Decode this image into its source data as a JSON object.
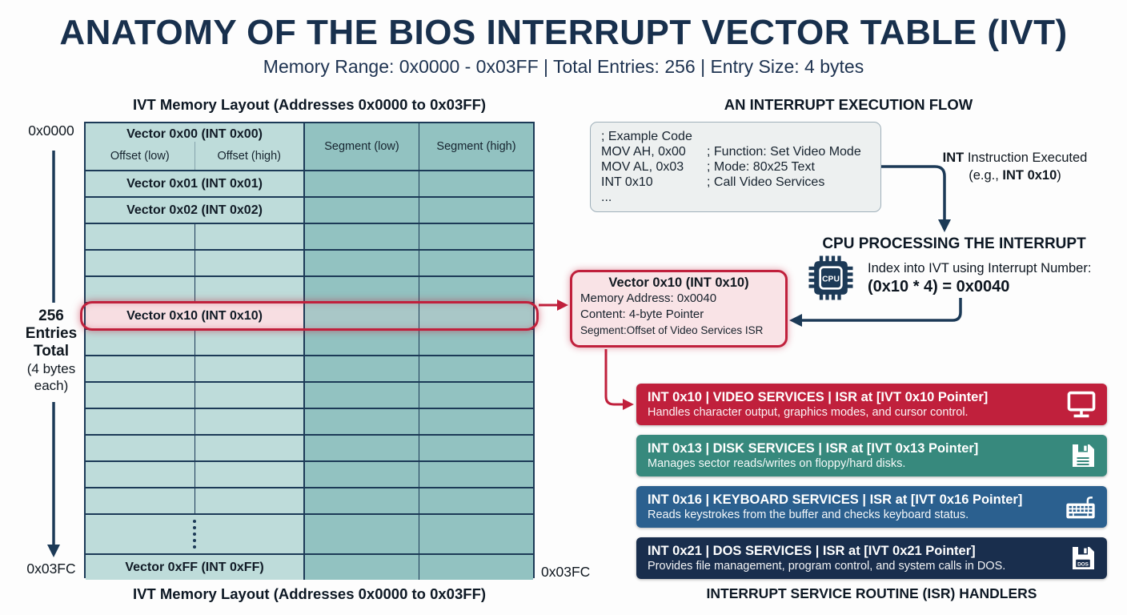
{
  "colors": {
    "navy": "#1c3a57",
    "title_navy": "#18304d",
    "crimson": "#c0203c",
    "cell_light": "#bedcda",
    "cell_dark": "#92c2c1",
    "highlight_pink": "#f7dee2",
    "callout_bg": "#f9e3e6",
    "code_bg": "#edf0f0",
    "bar_red": "#c0203c",
    "bar_teal": "#37897d",
    "bar_blue": "#2b608f",
    "bar_navy": "#192e4d"
  },
  "header": {
    "title": "ANATOMY OF THE BIOS INTERRUPT VECTOR TABLE (IVT)",
    "subtitle": "Memory Range: 0x0000 - 0x03FF | Total Entries: 256 | Entry Size: 4 bytes"
  },
  "ivt": {
    "heading": "IVT Memory Layout (Addresses 0x0000 to 0x03FF)",
    "caption": "IVT Memory Layout (Addresses 0x0000 to 0x03FF)",
    "addr_top": "0x0000",
    "addr_bottom_left": "0x03FC",
    "addr_bottom_right": "0x03FC",
    "side_note": [
      "256",
      "Entries",
      "Total",
      "(4 bytes",
      "each)"
    ],
    "header_row": {
      "title": "Vector 0x00 (INT 0x00)",
      "offset_low": "Offset (low)",
      "offset_high": "Offset (high)",
      "segment_low": "Segment (low)",
      "segment_high": "Segment (high)"
    },
    "rows": [
      {
        "type": "labeled",
        "label": "Vector 0x01 (INT 0x01)"
      },
      {
        "type": "labeled",
        "label": "Vector 0x02 (INT 0x02)"
      },
      {
        "type": "empty"
      },
      {
        "type": "empty"
      },
      {
        "type": "empty"
      },
      {
        "type": "highlight",
        "label": "Vector 0x10 (INT 0x10)"
      },
      {
        "type": "empty"
      },
      {
        "type": "empty"
      },
      {
        "type": "empty"
      },
      {
        "type": "empty"
      },
      {
        "type": "empty"
      },
      {
        "type": "empty"
      },
      {
        "type": "empty"
      },
      {
        "type": "ellipsis"
      },
      {
        "type": "labeled",
        "label": "Vector 0xFF (INT 0xFF)"
      }
    ]
  },
  "flow": {
    "heading": "AN INTERRUPT EXECUTION FLOW",
    "code_lines": [
      {
        "code": "; Example Code",
        "comment": ""
      },
      {
        "code": "MOV AH, 0x00",
        "comment": "; Function: Set Video Mode"
      },
      {
        "code": "MOV AL, 0x03",
        "comment": "; Mode: 80x25 Text"
      },
      {
        "code": "INT 0x10",
        "comment": "; Call Video Services"
      },
      {
        "code": "...",
        "comment": ""
      }
    ],
    "int_exec": {
      "bold1": "INT",
      "text1": " Instruction Executed",
      "pre2": "(e.g., ",
      "bold2": "INT 0x10",
      "post2": ")"
    },
    "cpu": {
      "heading": "CPU PROCESSING THE INTERRUPT",
      "chip_label": "CPU",
      "line1": "Index into IVT using Interrupt Number:",
      "line2": "(0x10 * 4) = 0x0040"
    }
  },
  "callout": {
    "title": "Vector 0x10 (INT 0x10)",
    "line1": "Memory Address: 0x0040",
    "line2": "Content: 4-byte Pointer",
    "line3": "Segment:Offset of Video Services ISR"
  },
  "isr": {
    "caption": "INTERRUPT SERVICE ROUTINE (ISR) HANDLERS",
    "bars": [
      {
        "title": "INT 0x10 | VIDEO SERVICES | ISR at [IVT 0x10 Pointer]",
        "subtitle": "Handles character output, graphics modes, and cursor control.",
        "color": "#c0203c",
        "icon": "monitor-icon"
      },
      {
        "title": "INT 0x13 | DISK SERVICES | ISR at [IVT 0x13 Pointer]",
        "subtitle": "Manages sector reads/writes on floppy/hard disks.",
        "color": "#37897d",
        "icon": "floppy-icon"
      },
      {
        "title": "INT 0x16 | KEYBOARD SERVICES | ISR at [IVT 0x16 Pointer]",
        "subtitle": "Reads keystrokes from the buffer and checks keyboard status.",
        "color": "#2b608f",
        "icon": "keyboard-icon"
      },
      {
        "title": "INT 0x21 | DOS SERVICES | ISR at [IVT 0x21 Pointer]",
        "subtitle": "Provides file management, program control, and system calls in DOS.",
        "color": "#192e4d",
        "icon": "floppy-dos-icon",
        "icon_label": "DOS"
      }
    ]
  }
}
